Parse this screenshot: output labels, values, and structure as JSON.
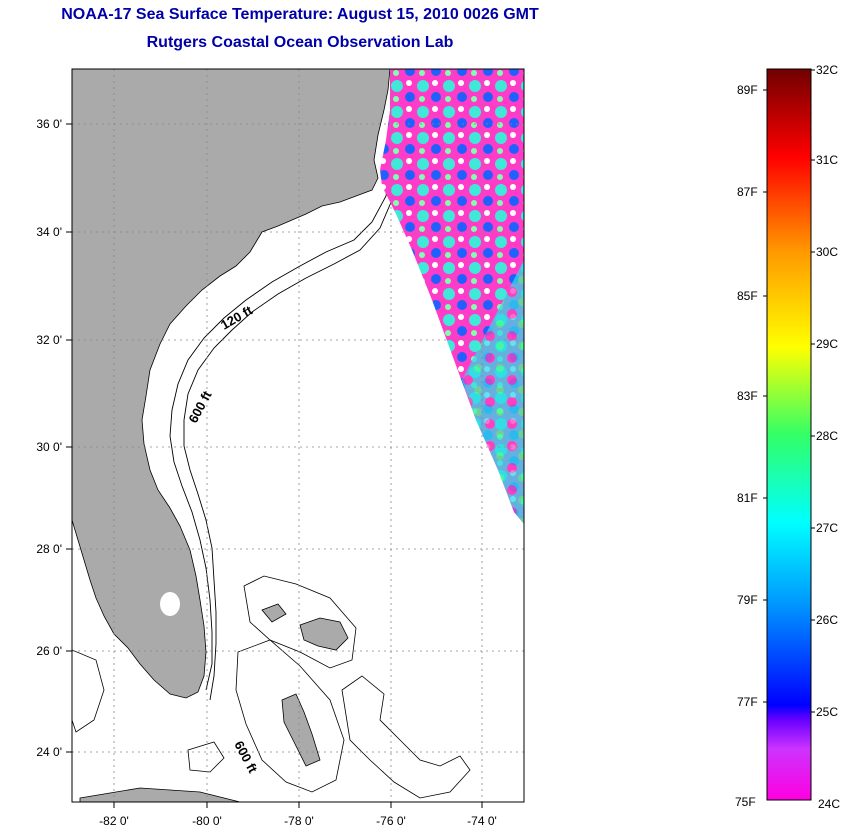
{
  "title": "NOAA-17 Sea Surface Temperature:  August 15, 2010 0026 GMT",
  "subtitle": "Rutgers Coastal Ocean Observation Lab",
  "map": {
    "lat_labels": [
      "36 0'",
      "34 0'",
      "32 0'",
      "30 0'",
      "28 0'",
      "26 0'",
      "24 0'"
    ],
    "lon_labels": [
      "-82 0'",
      "-80 0'",
      "-78 0'",
      "-76 0'",
      "-74 0'"
    ],
    "contour_labels": {
      "c120": "120 ft",
      "c600a": "600 ft",
      "c600b": "600 ft"
    },
    "colors": {
      "land": "#aaaaaa",
      "ocean": "#ffffff",
      "grid": "#999999"
    }
  },
  "colorbar": {
    "fahrenheit": [
      "89F",
      "87F",
      "85F",
      "83F",
      "81F",
      "79F",
      "77F",
      "75F"
    ],
    "celsius": [
      "32C",
      "31C",
      "30C",
      "29C",
      "28C",
      "27C",
      "26C",
      "25C",
      "24C"
    ]
  }
}
